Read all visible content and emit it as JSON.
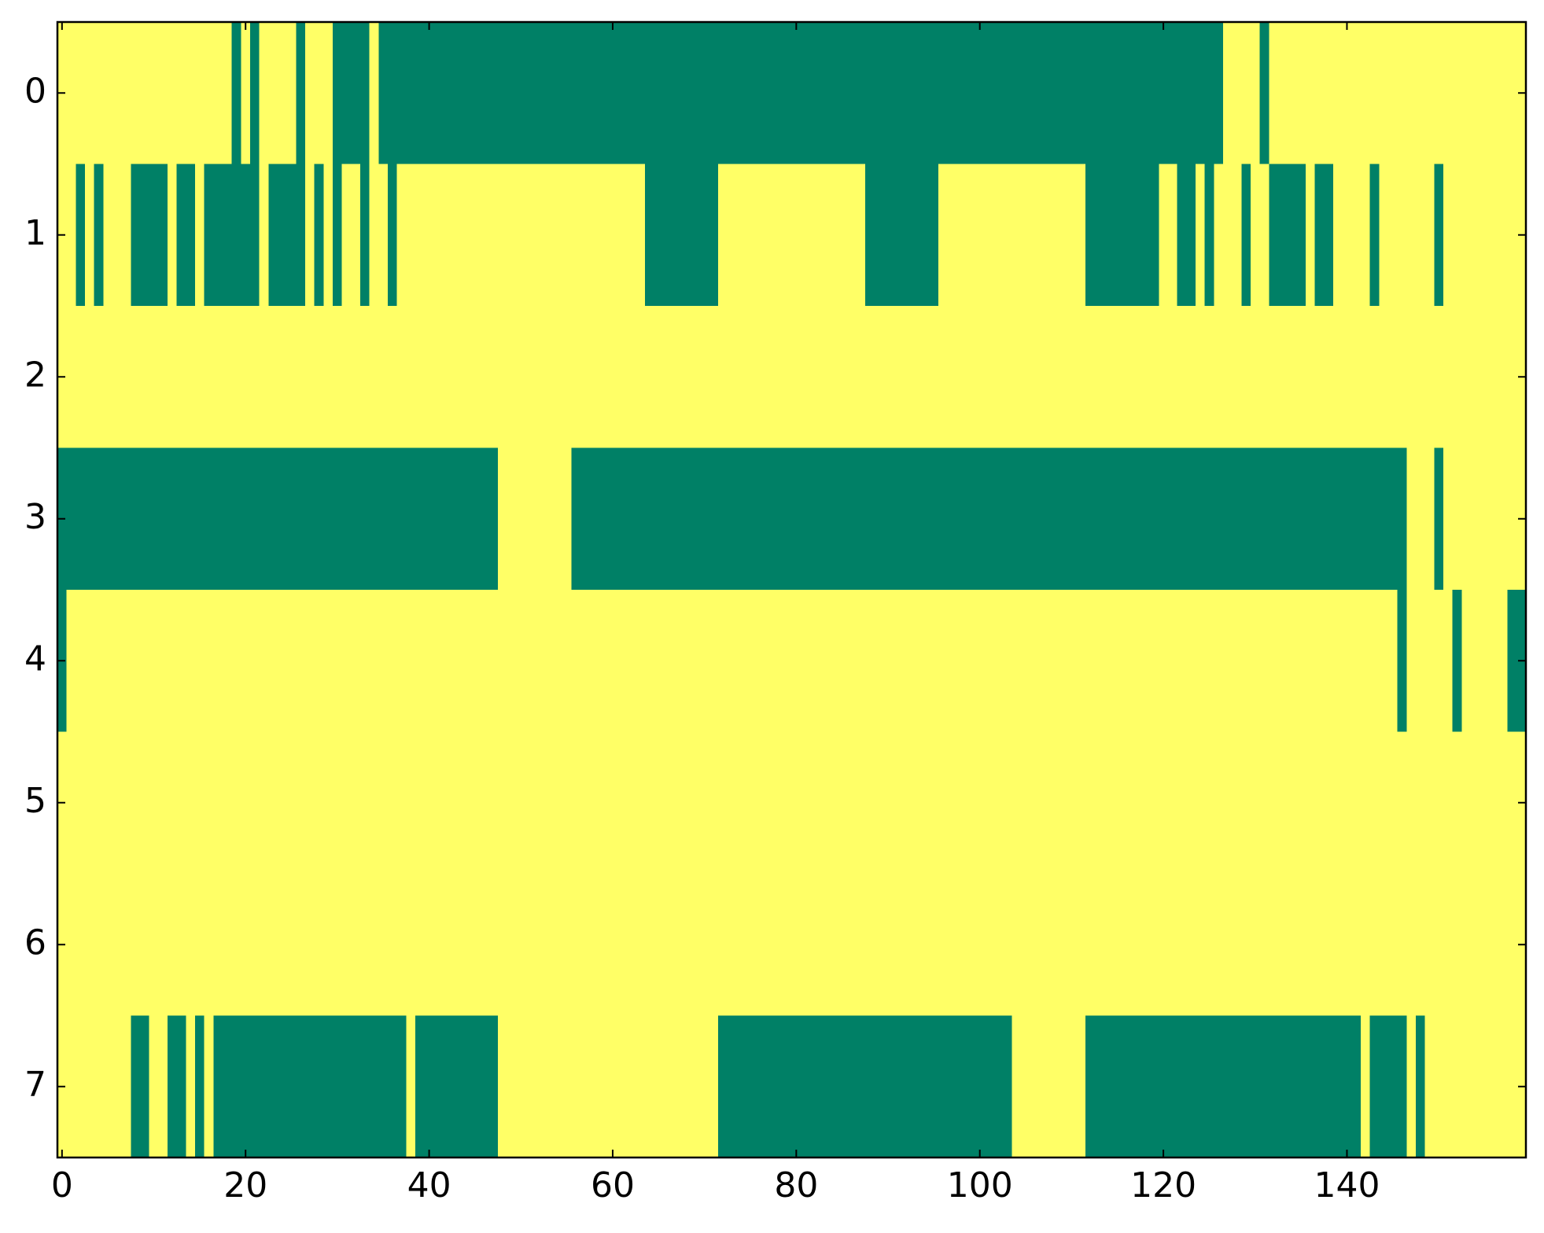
{
  "chart_data": {
    "type": "heatmap",
    "colormap": [
      "#008066",
      "#ffff66"
    ],
    "clim": [
      0,
      1
    ],
    "xlim": [
      -0.5,
      159.5
    ],
    "ylim": [
      7.5,
      -0.5
    ],
    "xticks": [
      0,
      20,
      40,
      60,
      80,
      100,
      120,
      140
    ],
    "yticks": [
      0,
      1,
      2,
      3,
      4,
      5,
      6,
      7
    ],
    "z": [
      [
        1,
        1,
        1,
        1,
        1,
        1,
        1,
        1,
        1,
        1,
        1,
        1,
        1,
        1,
        1,
        1,
        1,
        1,
        1,
        0,
        1,
        0,
        1,
        1,
        1,
        1,
        0,
        1,
        1,
        1,
        0,
        0,
        0,
        0,
        1,
        0,
        0,
        0,
        0,
        0,
        0,
        0,
        0,
        0,
        0,
        0,
        0,
        0,
        0,
        0,
        0,
        0,
        0,
        0,
        0,
        0,
        0,
        0,
        0,
        0,
        0,
        0,
        0,
        0,
        0,
        0,
        0,
        0,
        0,
        0,
        0,
        0,
        0,
        0,
        0,
        0,
        0,
        0,
        0,
        0,
        0,
        0,
        0,
        0,
        0,
        0,
        0,
        0,
        0,
        0,
        0,
        0,
        0,
        0,
        0,
        0,
        0,
        0,
        0,
        0,
        0,
        0,
        0,
        0,
        0,
        0,
        0,
        0,
        0,
        0,
        0,
        0,
        0,
        0,
        0,
        0,
        0,
        0,
        0,
        0,
        0,
        0,
        0,
        0,
        0,
        0,
        0,
        1,
        1,
        1,
        1,
        0,
        1,
        1,
        1,
        1,
        1,
        1,
        1,
        1,
        1,
        1,
        1,
        1,
        1,
        1,
        1,
        1,
        1,
        1,
        1,
        1,
        1,
        1,
        1,
        1,
        1,
        1,
        1,
        1
      ],
      [
        1,
        1,
        0,
        1,
        0,
        1,
        1,
        1,
        0,
        0,
        0,
        0,
        1,
        0,
        0,
        1,
        0,
        0,
        0,
        0,
        0,
        0,
        1,
        0,
        0,
        0,
        0,
        1,
        0,
        1,
        0,
        1,
        1,
        0,
        1,
        1,
        0,
        1,
        1,
        1,
        1,
        1,
        1,
        1,
        1,
        1,
        1,
        1,
        1,
        1,
        1,
        1,
        1,
        1,
        1,
        1,
        1,
        1,
        1,
        1,
        1,
        1,
        1,
        1,
        0,
        0,
        0,
        0,
        0,
        0,
        0,
        0,
        1,
        1,
        1,
        1,
        1,
        1,
        1,
        1,
        1,
        1,
        1,
        1,
        1,
        1,
        1,
        1,
        0,
        0,
        0,
        0,
        0,
        0,
        0,
        0,
        1,
        1,
        1,
        1,
        1,
        1,
        1,
        1,
        1,
        1,
        1,
        1,
        1,
        1,
        1,
        1,
        0,
        0,
        0,
        0,
        0,
        0,
        0,
        0,
        1,
        1,
        0,
        0,
        1,
        0,
        1,
        1,
        1,
        0,
        1,
        1,
        0,
        0,
        0,
        0,
        1,
        0,
        0,
        1,
        1,
        1,
        1,
        0,
        1,
        1,
        1,
        1,
        1,
        1,
        0,
        1,
        1,
        1,
        1,
        1,
        1,
        1,
        1,
        1
      ],
      [
        1,
        1,
        1,
        1,
        1,
        1,
        1,
        1,
        1,
        1,
        1,
        1,
        1,
        1,
        1,
        1,
        1,
        1,
        1,
        1,
        1,
        1,
        1,
        1,
        1,
        1,
        1,
        1,
        1,
        1,
        1,
        1,
        1,
        1,
        1,
        1,
        1,
        1,
        1,
        1,
        1,
        1,
        1,
        1,
        1,
        1,
        1,
        1,
        1,
        1,
        1,
        1,
        1,
        1,
        1,
        1,
        1,
        1,
        1,
        1,
        1,
        1,
        1,
        1,
        1,
        1,
        1,
        1,
        1,
        1,
        1,
        1,
        1,
        1,
        1,
        1,
        1,
        1,
        1,
        1,
        1,
        1,
        1,
        1,
        1,
        1,
        1,
        1,
        1,
        1,
        1,
        1,
        1,
        1,
        1,
        1,
        1,
        1,
        1,
        1,
        1,
        1,
        1,
        1,
        1,
        1,
        1,
        1,
        1,
        1,
        1,
        1,
        1,
        1,
        1,
        1,
        1,
        1,
        1,
        1,
        1,
        1,
        1,
        1,
        1,
        1,
        1,
        1,
        1,
        1,
        1,
        1,
        1,
        1,
        1,
        1,
        1,
        1,
        1,
        1,
        1,
        1,
        1,
        1,
        1,
        1,
        1,
        1,
        1,
        1,
        1,
        1,
        1,
        1,
        1,
        1,
        1,
        1,
        1,
        1
      ],
      [
        0,
        0,
        0,
        0,
        0,
        0,
        0,
        0,
        0,
        0,
        0,
        0,
        0,
        0,
        0,
        0,
        0,
        0,
        0,
        0,
        0,
        0,
        0,
        0,
        0,
        0,
        0,
        0,
        0,
        0,
        0,
        0,
        0,
        0,
        0,
        0,
        0,
        0,
        0,
        0,
        0,
        0,
        0,
        0,
        0,
        0,
        0,
        0,
        1,
        1,
        1,
        1,
        1,
        1,
        1,
        1,
        0,
        0,
        0,
        0,
        0,
        0,
        0,
        0,
        0,
        0,
        0,
        0,
        0,
        0,
        0,
        0,
        0,
        0,
        0,
        0,
        0,
        0,
        0,
        0,
        0,
        0,
        0,
        0,
        0,
        0,
        0,
        0,
        0,
        0,
        0,
        0,
        0,
        0,
        0,
        0,
        0,
        0,
        0,
        0,
        0,
        0,
        0,
        0,
        0,
        0,
        0,
        0,
        0,
        0,
        0,
        0,
        0,
        0,
        0,
        0,
        0,
        0,
        0,
        0,
        0,
        0,
        0,
        0,
        0,
        0,
        0,
        0,
        0,
        0,
        0,
        0,
        0,
        0,
        0,
        0,
        0,
        0,
        0,
        0,
        0,
        0,
        0,
        0,
        0,
        0,
        0,
        1,
        1,
        1,
        0,
        1,
        1,
        1,
        1,
        1,
        1,
        1,
        1,
        1
      ],
      [
        0,
        1,
        1,
        1,
        1,
        1,
        1,
        1,
        1,
        1,
        1,
        1,
        1,
        1,
        1,
        1,
        1,
        1,
        1,
        1,
        1,
        1,
        1,
        1,
        1,
        1,
        1,
        1,
        1,
        1,
        1,
        1,
        1,
        1,
        1,
        1,
        1,
        1,
        1,
        1,
        1,
        1,
        1,
        1,
        1,
        1,
        1,
        1,
        1,
        1,
        1,
        1,
        1,
        1,
        1,
        1,
        1,
        1,
        1,
        1,
        1,
        1,
        1,
        1,
        1,
        1,
        1,
        1,
        1,
        1,
        1,
        1,
        1,
        1,
        1,
        1,
        1,
        1,
        1,
        1,
        1,
        1,
        1,
        1,
        1,
        1,
        1,
        1,
        1,
        1,
        1,
        1,
        1,
        1,
        1,
        1,
        1,
        1,
        1,
        1,
        1,
        1,
        1,
        1,
        1,
        1,
        1,
        1,
        1,
        1,
        1,
        1,
        1,
        1,
        1,
        1,
        1,
        1,
        1,
        1,
        1,
        1,
        1,
        1,
        1,
        1,
        1,
        1,
        1,
        1,
        1,
        1,
        1,
        1,
        1,
        1,
        1,
        1,
        1,
        1,
        1,
        1,
        1,
        1,
        1,
        1,
        0,
        1,
        1,
        1,
        1,
        1,
        0,
        1,
        1,
        1,
        1,
        1,
        0,
        0
      ],
      [
        1,
        1,
        1,
        1,
        1,
        1,
        1,
        1,
        1,
        1,
        1,
        1,
        1,
        1,
        1,
        1,
        1,
        1,
        1,
        1,
        1,
        1,
        1,
        1,
        1,
        1,
        1,
        1,
        1,
        1,
        1,
        1,
        1,
        1,
        1,
        1,
        1,
        1,
        1,
        1,
        1,
        1,
        1,
        1,
        1,
        1,
        1,
        1,
        1,
        1,
        1,
        1,
        1,
        1,
        1,
        1,
        1,
        1,
        1,
        1,
        1,
        1,
        1,
        1,
        1,
        1,
        1,
        1,
        1,
        1,
        1,
        1,
        1,
        1,
        1,
        1,
        1,
        1,
        1,
        1,
        1,
        1,
        1,
        1,
        1,
        1,
        1,
        1,
        1,
        1,
        1,
        1,
        1,
        1,
        1,
        1,
        1,
        1,
        1,
        1,
        1,
        1,
        1,
        1,
        1,
        1,
        1,
        1,
        1,
        1,
        1,
        1,
        1,
        1,
        1,
        1,
        1,
        1,
        1,
        1,
        1,
        1,
        1,
        1,
        1,
        1,
        1,
        1,
        1,
        1,
        1,
        1,
        1,
        1,
        1,
        1,
        1,
        1,
        1,
        1,
        1,
        1,
        1,
        1,
        1,
        1,
        1,
        1,
        1,
        1,
        1,
        1,
        1,
        1,
        1,
        1,
        1,
        1,
        1,
        1
      ],
      [
        1,
        1,
        1,
        1,
        1,
        1,
        1,
        1,
        1,
        1,
        1,
        1,
        1,
        1,
        1,
        1,
        1,
        1,
        1,
        1,
        1,
        1,
        1,
        1,
        1,
        1,
        1,
        1,
        1,
        1,
        1,
        1,
        1,
        1,
        1,
        1,
        1,
        1,
        1,
        1,
        1,
        1,
        1,
        1,
        1,
        1,
        1,
        1,
        1,
        1,
        1,
        1,
        1,
        1,
        1,
        1,
        1,
        1,
        1,
        1,
        1,
        1,
        1,
        1,
        1,
        1,
        1,
        1,
        1,
        1,
        1,
        1,
        1,
        1,
        1,
        1,
        1,
        1,
        1,
        1,
        1,
        1,
        1,
        1,
        1,
        1,
        1,
        1,
        1,
        1,
        1,
        1,
        1,
        1,
        1,
        1,
        1,
        1,
        1,
        1,
        1,
        1,
        1,
        1,
        1,
        1,
        1,
        1,
        1,
        1,
        1,
        1,
        1,
        1,
        1,
        1,
        1,
        1,
        1,
        1,
        1,
        1,
        1,
        1,
        1,
        1,
        1,
        1,
        1,
        1,
        1,
        1,
        1,
        1,
        1,
        1,
        1,
        1,
        1,
        1,
        1,
        1,
        1,
        1,
        1,
        1,
        1,
        1,
        1,
        1,
        1,
        1,
        1,
        1,
        1,
        1,
        1,
        1,
        1,
        1
      ],
      [
        1,
        1,
        1,
        1,
        1,
        1,
        1,
        1,
        0,
        0,
        1,
        1,
        0,
        0,
        1,
        0,
        1,
        0,
        0,
        0,
        0,
        0,
        0,
        0,
        0,
        0,
        0,
        0,
        0,
        0,
        0,
        0,
        0,
        0,
        0,
        0,
        0,
        0,
        1,
        0,
        0,
        0,
        0,
        0,
        0,
        0,
        0,
        0,
        1,
        1,
        1,
        1,
        1,
        1,
        1,
        1,
        1,
        1,
        1,
        1,
        1,
        1,
        1,
        1,
        1,
        1,
        1,
        1,
        1,
        1,
        1,
        1,
        0,
        0,
        0,
        0,
        0,
        0,
        0,
        0,
        0,
        0,
        0,
        0,
        0,
        0,
        0,
        0,
        0,
        0,
        0,
        0,
        0,
        0,
        0,
        0,
        0,
        0,
        0,
        0,
        0,
        0,
        0,
        0,
        1,
        1,
        1,
        1,
        1,
        1,
        1,
        1,
        0,
        0,
        0,
        0,
        0,
        0,
        0,
        0,
        0,
        0,
        0,
        0,
        0,
        0,
        0,
        0,
        0,
        0,
        0,
        0,
        0,
        0,
        0,
        0,
        0,
        0,
        0,
        0,
        0,
        0,
        1,
        0,
        0,
        0,
        0,
        1,
        0,
        1,
        1,
        1,
        1,
        1,
        1,
        1,
        1,
        1,
        1,
        1
      ]
    ]
  }
}
